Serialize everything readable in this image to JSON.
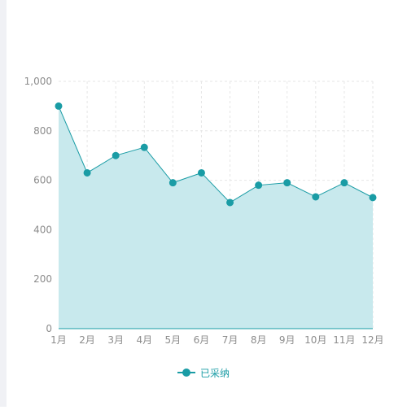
{
  "chart_data": {
    "type": "area",
    "categories": [
      "1月",
      "2月",
      "3月",
      "4月",
      "5月",
      "6月",
      "7月",
      "8月",
      "9月",
      "10月",
      "11月",
      "12月"
    ],
    "series": [
      {
        "name": "已采纳",
        "values": [
          900,
          630,
          700,
          733,
          590,
          630,
          510,
          580,
          590,
          533,
          590,
          530
        ]
      }
    ],
    "ylim": [
      0,
      1000
    ],
    "yticks": [
      0,
      200,
      400,
      600,
      800,
      1000
    ],
    "ytick_labels": [
      "0",
      "200",
      "400",
      "600",
      "800",
      "1,000"
    ],
    "grid": true,
    "legend_position": "bottom",
    "colors": {
      "line": "#1a9ca5",
      "fill": "#c8e9ed",
      "axis": "#1a9ca5",
      "tick_text": "#8c8c8c",
      "grid": "#e6e6e6",
      "legend_text": "#1a9ca5"
    }
  }
}
